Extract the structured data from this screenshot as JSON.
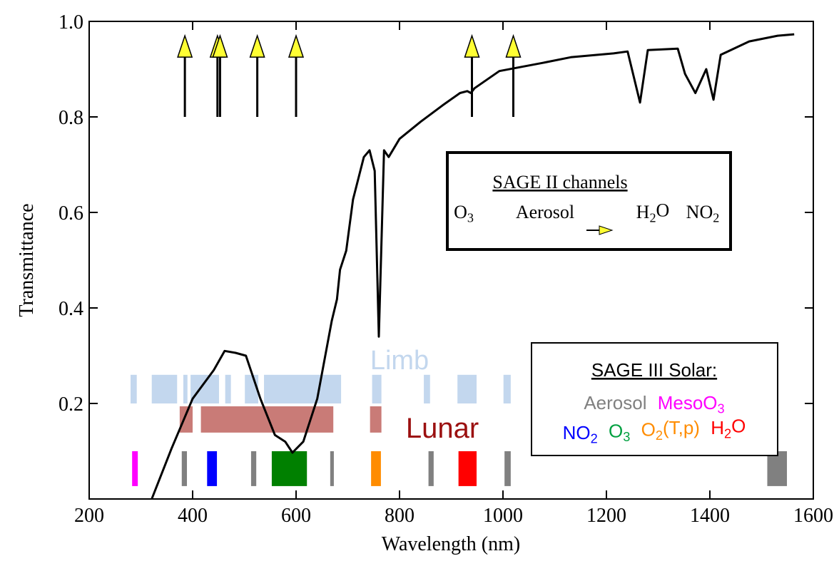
{
  "chart_data": {
    "type": "line",
    "x_label": "Wavelength (nm)",
    "y_label": "Transmittance",
    "xlim": [
      200,
      1600
    ],
    "ylim": [
      0,
      1
    ],
    "xticks": [
      200,
      400,
      600,
      800,
      1000,
      1200,
      1400,
      1600
    ],
    "yticks": [
      0.2,
      0.4,
      0.6,
      0.8,
      {
        "value": 1,
        "label": "1.0"
      }
    ],
    "color": "#000000",
    "x": [
      321,
      359,
      400,
      441,
      462,
      483,
      503,
      531,
      559,
      579,
      593,
      614,
      641,
      669,
      679,
      685,
      697,
      710,
      731,
      742,
      752,
      760,
      770,
      779,
      800,
      841,
      883,
      917,
      931,
      938,
      945,
      993,
      1076,
      1131,
      1214,
      1241,
      1265,
      1280,
      1338,
      1352,
      1372,
      1393,
      1407,
      1421,
      1476,
      1531,
      1563
    ],
    "values": [
      0.0,
      0.105,
      0.21,
      0.27,
      0.31,
      0.306,
      0.3,
      0.21,
      0.134,
      0.12,
      0.097,
      0.12,
      0.21,
      0.373,
      0.418,
      0.48,
      0.52,
      0.627,
      0.716,
      0.73,
      0.687,
      0.34,
      0.73,
      0.716,
      0.754,
      0.79,
      0.824,
      0.85,
      0.854,
      0.85,
      0.86,
      0.896,
      0.913,
      0.925,
      0.933,
      0.937,
      0.83,
      0.94,
      0.943,
      0.89,
      0.85,
      0.9,
      0.836,
      0.93,
      0.958,
      0.97,
      0.973
    ],
    "sage2_channels": [
      385,
      448,
      453,
      525,
      600,
      940,
      1020
    ],
    "sage2_legend": {
      "title": "SAGE II channels",
      "items": [
        {
          "segments": [
            {
              "t": "O"
            },
            {
              "t": "3",
              "sub": true
            }
          ]
        },
        {
          "segments": [
            {
              "t": "Aerosol"
            }
          ]
        },
        {
          "segments": [
            {
              "t": "H"
            },
            {
              "t": "2",
              "sub": true
            },
            {
              "t": "O"
            }
          ]
        },
        {
          "segments": [
            {
              "t": "NO"
            },
            {
              "t": "2",
              "sub": true
            }
          ]
        }
      ]
    },
    "limb": {
      "label": "Limb",
      "color": "#c3d7ee",
      "bands": [
        [
          280,
          292
        ],
        [
          321,
          370
        ],
        [
          382,
          390
        ],
        [
          396,
          451
        ],
        [
          463,
          474
        ],
        [
          501,
          527
        ],
        [
          538,
          687
        ],
        [
          747,
          765
        ],
        [
          847,
          859
        ],
        [
          912,
          949
        ],
        [
          1001,
          1015
        ]
      ]
    },
    "lunar": {
      "label": "Lunar",
      "color": "#c97b77",
      "label_color": "#9b1010",
      "bands": [
        [
          375,
          400
        ],
        [
          416,
          672
        ],
        [
          743,
          765
        ]
      ]
    },
    "solar": {
      "bands": [
        {
          "range": [
            283,
            294
          ],
          "color": "#ff00ff"
        },
        {
          "range": [
            379,
            389
          ],
          "color": "#808080"
        },
        {
          "range": [
            428,
            447
          ],
          "color": "#0000ff"
        },
        {
          "range": [
            513,
            523
          ],
          "color": "#808080"
        },
        {
          "range": [
            553,
            621
          ],
          "color": "#008000"
        },
        {
          "range": [
            666,
            673
          ],
          "color": "#808080"
        },
        {
          "range": [
            745,
            764
          ],
          "color": "#ff8c00"
        },
        {
          "range": [
            856,
            866
          ],
          "color": "#808080"
        },
        {
          "range": [
            914,
            949
          ],
          "color": "#ff0000"
        },
        {
          "range": [
            1003,
            1015
          ],
          "color": "#808080"
        },
        {
          "range": [
            1511,
            1549
          ],
          "color": "#808080"
        }
      ],
      "legend_title": "SAGE III Solar:",
      "legend_rows": [
        [
          {
            "color": "#808080",
            "segments": [
              {
                "t": "Aerosol"
              }
            ]
          },
          {
            "color": "#ff00ff",
            "segments": [
              {
                "t": "MesoO"
              },
              {
                "t": "3",
                "sub": true
              }
            ]
          }
        ],
        [
          {
            "color": "#0000ff",
            "segments": [
              {
                "t": "NO"
              },
              {
                "t": "2",
                "sub": true
              }
            ]
          },
          {
            "color": "#00a040",
            "segments": [
              {
                "t": "O"
              },
              {
                "t": "3",
                "sub": true
              }
            ]
          },
          {
            "color": "#ff8c00",
            "segments": [
              {
                "t": "O"
              },
              {
                "t": "2",
                "sub": true
              },
              {
                "t": "(T,p)"
              }
            ]
          },
          {
            "color": "#ff0000",
            "segments": [
              {
                "t": "H"
              },
              {
                "t": "2",
                "sub": true
              },
              {
                "t": "O"
              }
            ]
          }
        ]
      ]
    }
  }
}
